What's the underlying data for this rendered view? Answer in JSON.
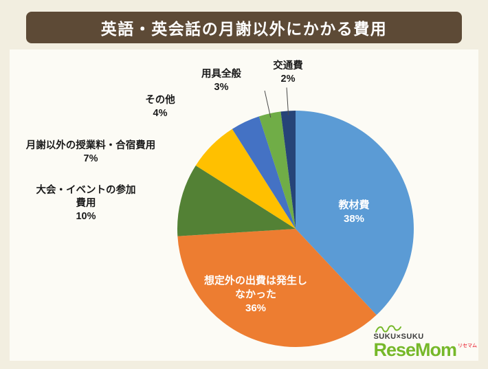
{
  "header": {
    "title": "英語・英会話の月謝以外にかかる費用",
    "bar_color": "#5D4A36",
    "text_color": "#FFFFFF"
  },
  "chart_data": {
    "type": "pie",
    "title": "英語・英会話の月謝以外にかかる費用",
    "unit": "percent",
    "direction": "clockwise",
    "start_angle_deg": 0,
    "legend_position": "none",
    "background_color": "#F2EEE0",
    "slices": [
      {
        "label": "教材費",
        "value": 38,
        "pct": "38%",
        "color": "#5B9BD5",
        "label_position": "inside",
        "leader_line": false
      },
      {
        "label": "想定外の出費は発生しなかった",
        "value": 36,
        "pct": "36%",
        "color": "#ED7D31",
        "label_position": "inside",
        "leader_line": false
      },
      {
        "label": "大会・イベントの参加費用",
        "value": 10,
        "pct": "10%",
        "color": "#538135",
        "label_position": "outside",
        "leader_line": false
      },
      {
        "label": "月謝以外の授業料・合宿費用",
        "value": 7,
        "pct": "7%",
        "color": "#FFC000",
        "label_position": "outside",
        "leader_line": false
      },
      {
        "label": "その他",
        "value": 4,
        "pct": "4%",
        "color": "#4472C4",
        "label_position": "outside",
        "leader_line": false
      },
      {
        "label": "用具全般",
        "value": 3,
        "pct": "3%",
        "color": "#70AD47",
        "label_position": "outside",
        "leader_line": true
      },
      {
        "label": "交通費",
        "value": 2,
        "pct": "2%",
        "color": "#264478",
        "label_position": "outside",
        "leader_line": true
      }
    ]
  },
  "logo": {
    "brand_top": "SUKU×SUKU",
    "brand_name": "ReseMom",
    "brand_kana": "リセマム",
    "green": "#76B82A",
    "red": "#E60012"
  }
}
